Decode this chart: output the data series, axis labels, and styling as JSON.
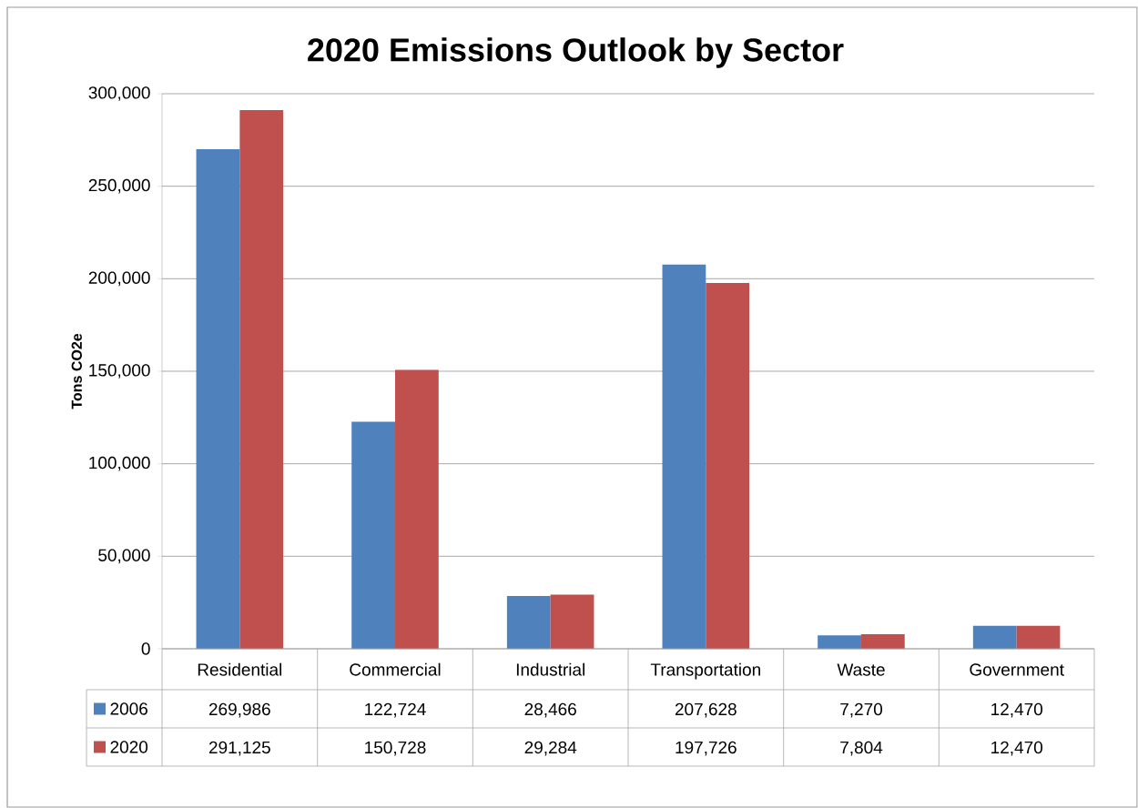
{
  "chart_data": {
    "type": "bar",
    "title": "2020 Emissions Outlook by Sector",
    "ylabel": "Tons CO2e",
    "categories": [
      "Residential",
      "Commercial",
      "Industrial",
      "Transportation",
      "Waste",
      "Government"
    ],
    "series": [
      {
        "name": "2006",
        "color": "#4f81bd",
        "values": [
          269986,
          122724,
          28466,
          207628,
          7270,
          12470
        ],
        "value_labels": [
          "269,986",
          "122,724",
          "28,466",
          "207,628",
          "7,270",
          "12,470"
        ]
      },
      {
        "name": "2020",
        "color": "#c0504d",
        "values": [
          291125,
          150728,
          29284,
          197726,
          7804,
          12470
        ],
        "value_labels": [
          "291,125",
          "150,728",
          "29,284",
          "197,726",
          "7,804",
          "12,470"
        ]
      }
    ],
    "ylim": [
      0,
      300000
    ],
    "yticks": [
      0,
      {
        "value": 50000,
        "label": "50,000"
      },
      {
        "value": 100000,
        "label": "100,000"
      },
      {
        "value": 150000,
        "label": "150,000"
      },
      {
        "value": 200000,
        "label": "200,000"
      },
      {
        "value": 250000,
        "label": "250,000"
      },
      {
        "value": 300000,
        "label": "300,000"
      }
    ],
    "grid": "y",
    "legend": "bottom"
  }
}
